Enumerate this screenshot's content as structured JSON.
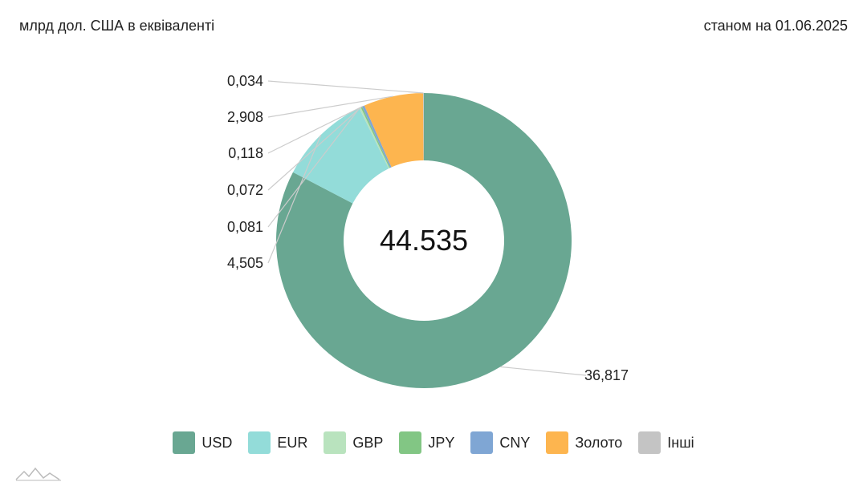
{
  "header": {
    "unit": "млрд дол. США в еквіваленті",
    "date": "станом на 01.06.2025"
  },
  "chart_data": {
    "type": "pie",
    "donut": true,
    "total_label": "44.535",
    "series": [
      {
        "name": "USD",
        "value": 36.817,
        "label": "36,817",
        "color": "#69a792"
      },
      {
        "name": "EUR",
        "value": 4.505,
        "label": "4,505",
        "color": "#93dcd9"
      },
      {
        "name": "GBP",
        "value": 0.081,
        "label": "0,081",
        "color": "#b9e3be"
      },
      {
        "name": "JPY",
        "value": 0.072,
        "label": "0,072",
        "color": "#82c684"
      },
      {
        "name": "CNY",
        "value": 0.118,
        "label": "0,118",
        "color": "#7fa6d4"
      },
      {
        "name": "Золото",
        "value": 2.908,
        "label": "2,908",
        "color": "#fdb54f"
      },
      {
        "name": "Інші",
        "value": 0.034,
        "label": "0,034",
        "color": "#c4c4c4"
      }
    ],
    "legend_position": "bottom"
  },
  "logo": {
    "icon": "mountain-logo-icon"
  }
}
